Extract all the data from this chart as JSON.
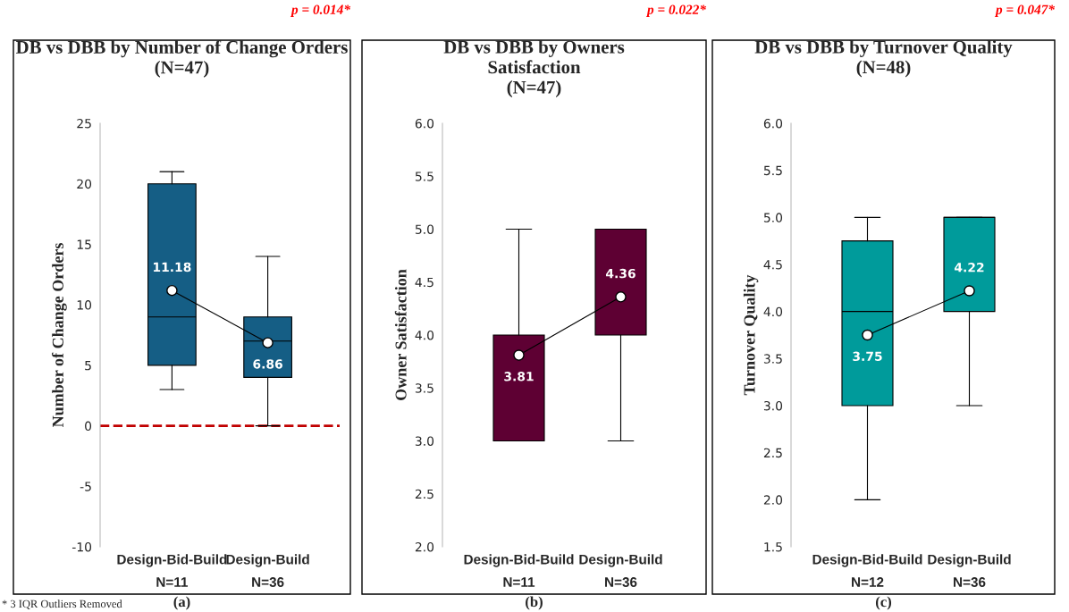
{
  "chart_data": [
    {
      "type": "box",
      "title": "DB vs DBB by Number of Change Orders\n(N=47)",
      "ylabel": "Number of Change Orders",
      "categories": [
        "Design-Bid-Build\nN=11",
        "Design-Build\nN=36"
      ],
      "color": "#155e85",
      "boxes": [
        {
          "low": 3,
          "q1": 5,
          "median": 9,
          "q3": 20,
          "high": 21
        },
        {
          "low": 0,
          "q1": 4,
          "median": 7,
          "q3": 9,
          "high": 14
        }
      ],
      "series": [
        {
          "type": "line",
          "color": "#000000",
          "values": [
            11.18,
            6.86
          ]
        }
      ],
      "marker": "circle",
      "data_labels": true,
      "ref_lines": [
        {
          "axis": "y",
          "value": 0,
          "color": "#c00000",
          "line_style": "dashed"
        }
      ],
      "ylim": [
        -10,
        25
      ],
      "yticks": [
        -10,
        -5,
        0,
        5,
        10,
        15,
        20,
        25
      ],
      "grid": false,
      "annotations": [
        "p = 0.014*",
        "(a)",
        "* 3 IQR Outliers Removed"
      ]
    },
    {
      "type": "box",
      "title": "DB vs DBB by Owners\nSatisfaction\n(N=47)",
      "ylabel": "Owner Satisfaction",
      "categories": [
        "Design-Bid-Build\nN=11",
        "Design-Build\nN=36"
      ],
      "color": "#5e0033",
      "boxes": [
        {
          "low": 3,
          "q1": 3,
          "median": 3,
          "q3": 4,
          "high": 5
        },
        {
          "low": 3,
          "q1": 4,
          "median": 5,
          "q3": 5,
          "high": 5
        }
      ],
      "series": [
        {
          "type": "line",
          "color": "#000000",
          "values": [
            3.81,
            4.36
          ]
        }
      ],
      "marker": "circle",
      "data_labels": true,
      "ylim": [
        2.0,
        6.0
      ],
      "yticks": [
        {
          "value": 2.0,
          "label": "2.0"
        },
        {
          "value": 2.5,
          "label": "2.5"
        },
        {
          "value": 3.0,
          "label": "3.0"
        },
        {
          "value": 3.5,
          "label": "3.5"
        },
        {
          "value": 4.0,
          "label": "4.0"
        },
        {
          "value": 4.5,
          "label": "4.5"
        },
        {
          "value": 5.0,
          "label": "5.0"
        },
        {
          "value": 5.5,
          "label": "5.5"
        },
        {
          "value": 6.0,
          "label": "6.0"
        }
      ],
      "grid": false,
      "annotations": [
        "p = 0.022*",
        "(b)"
      ]
    },
    {
      "type": "box",
      "title": "DB vs DBB by Turnover Quality\n(N=48)",
      "ylabel": "Turnover Quality",
      "categories": [
        "Design-Bid-Build\nN=12",
        "Design-Build\nN=36"
      ],
      "color": "#009b9b",
      "boxes": [
        {
          "low": 2,
          "q1": 3,
          "median": 4,
          "q3": 4.75,
          "high": 5
        },
        {
          "low": 3,
          "q1": 4,
          "median": 5,
          "q3": 5,
          "high": 5
        }
      ],
      "series": [
        {
          "type": "line",
          "color": "#000000",
          "values": [
            3.75,
            4.22
          ]
        }
      ],
      "marker": "circle",
      "data_labels": true,
      "ylim": [
        1.5,
        6.0
      ],
      "yticks": [
        {
          "value": 1.5,
          "label": "1.5"
        },
        {
          "value": 2.0,
          "label": "2.0"
        },
        {
          "value": 2.5,
          "label": "2.5"
        },
        {
          "value": 3.0,
          "label": "3.0"
        },
        {
          "value": 3.5,
          "label": "3.5"
        },
        {
          "value": 4.0,
          "label": "4.0"
        },
        {
          "value": 4.5,
          "label": "4.5"
        },
        {
          "value": 5.0,
          "label": "5.0"
        },
        {
          "value": 5.5,
          "label": "5.5"
        },
        {
          "value": 6.0,
          "label": "6.0"
        }
      ],
      "grid": false,
      "annotations": [
        "p = 0.047*",
        "(c)"
      ]
    }
  ]
}
